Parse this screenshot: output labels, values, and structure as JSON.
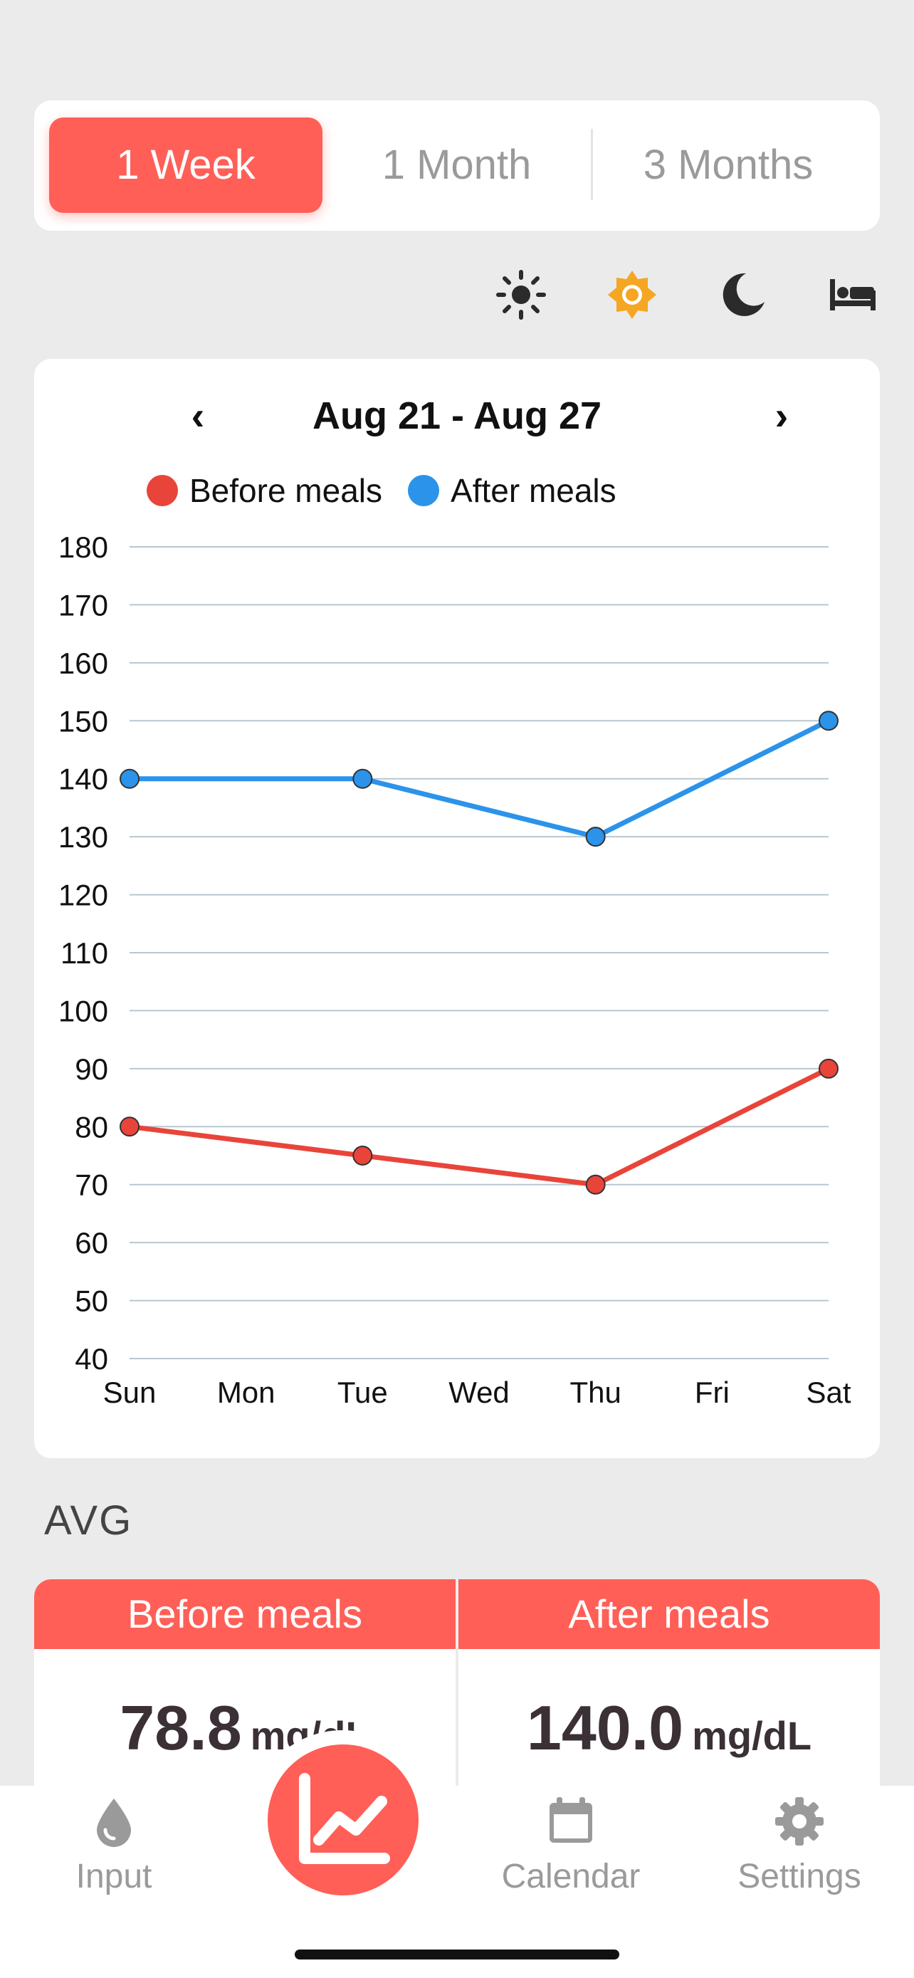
{
  "range": {
    "options": [
      "1 Week",
      "1 Month",
      "3 Months"
    ],
    "selected": "1 Week"
  },
  "time_of_day_filters": [
    {
      "icon": "sun-icon",
      "active": false
    },
    {
      "icon": "sun-outline-icon",
      "active": true
    },
    {
      "icon": "moon-icon",
      "active": false
    },
    {
      "icon": "bed-icon",
      "active": false
    }
  ],
  "colors": {
    "accent": "#ff5f57",
    "before": "#e9443a",
    "after": "#2b93ea",
    "active_icon": "#f5a623",
    "icon": "#2b2b2b"
  },
  "chart": {
    "date_range": "Aug 21 - Aug 27",
    "prev_icon": "chevron-left-icon",
    "next_icon": "chevron-right-icon"
  },
  "chart_data": {
    "type": "line",
    "categories": [
      "Sun",
      "Mon",
      "Tue",
      "Wed",
      "Thu",
      "Fri",
      "Sat"
    ],
    "ylim": [
      40,
      180
    ],
    "yticks": [
      180,
      170,
      160,
      150,
      140,
      130,
      120,
      110,
      100,
      90,
      80,
      70,
      60,
      50,
      40
    ],
    "grid": true,
    "legend_position": "top",
    "series": [
      {
        "name": "Before meals",
        "color": "#e9443a",
        "points": [
          {
            "x": "Sun",
            "y": 80
          },
          {
            "x": "Tue",
            "y": 75
          },
          {
            "x": "Thu",
            "y": 70
          },
          {
            "x": "Sat",
            "y": 90
          }
        ]
      },
      {
        "name": "After meals",
        "color": "#2b93ea",
        "points": [
          {
            "x": "Sun",
            "y": 140
          },
          {
            "x": "Tue",
            "y": 140
          },
          {
            "x": "Thu",
            "y": 130
          },
          {
            "x": "Sat",
            "y": 150
          }
        ]
      }
    ]
  },
  "avg": {
    "title": "AVG",
    "before": {
      "label": "Before meals",
      "value": "78.8",
      "unit": "mg/dL"
    },
    "after": {
      "label": "After meals",
      "value": "140.0",
      "unit": "mg/dL"
    }
  },
  "tabs": [
    {
      "label": "Input",
      "icon": "drop-icon"
    },
    {
      "label": "",
      "icon": "chart-icon",
      "active": true
    },
    {
      "label": "Calendar",
      "icon": "calendar-icon"
    },
    {
      "label": "Settings",
      "icon": "gear-icon"
    }
  ]
}
